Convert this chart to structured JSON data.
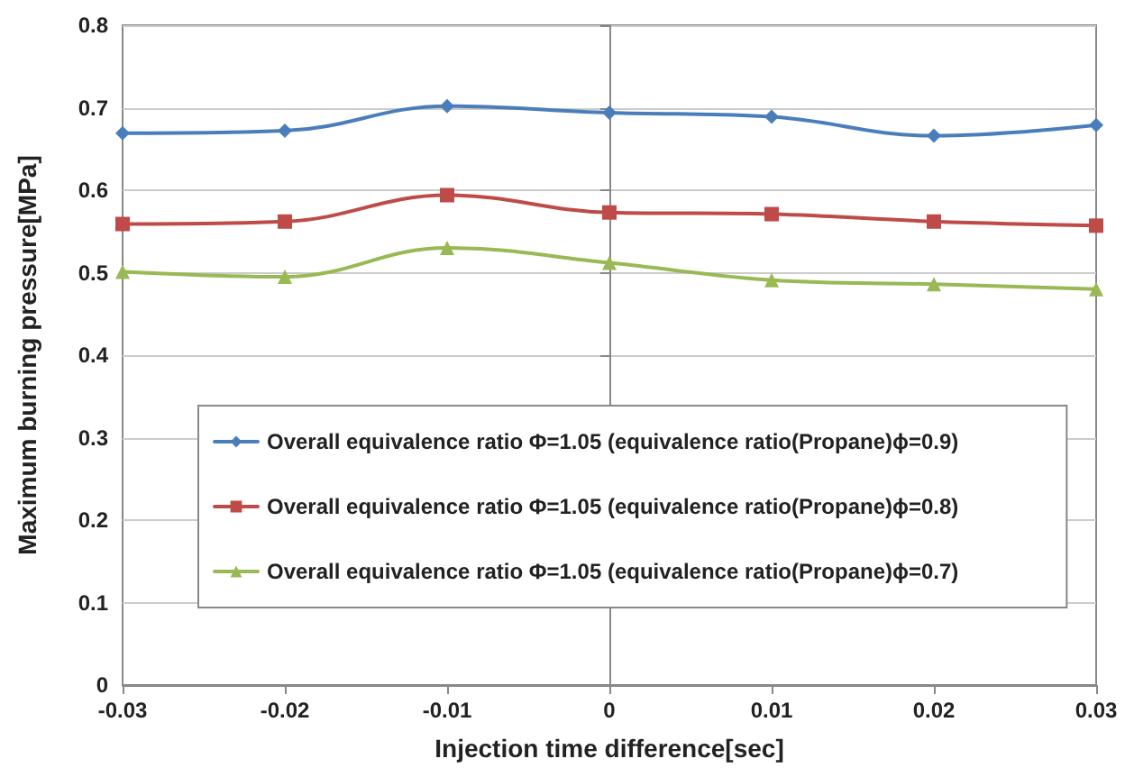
{
  "chart_data": {
    "type": "line",
    "xlabel": "Injection time difference[sec]",
    "ylabel": "Maximum burning pressure[MPa]",
    "x": [
      -0.03,
      -0.02,
      -0.01,
      0,
      0.01,
      0.02,
      0.03
    ],
    "series": [
      {
        "name": "Overall equivalence ratio Φ=1.05 (equivalence ratio(Propane)ϕ=0.9)",
        "color": "#4a7ebb",
        "marker": "diamond",
        "values": [
          0.669,
          0.672,
          0.702,
          0.694,
          0.689,
          0.666,
          0.679
        ]
      },
      {
        "name": "Overall equivalence ratio Φ=1.05 (equivalence ratio(Propane)ϕ=0.8)",
        "color": "#be4b48",
        "marker": "square",
        "values": [
          0.559,
          0.562,
          0.594,
          0.573,
          0.571,
          0.562,
          0.557
        ]
      },
      {
        "name": "Overall equivalence ratio Φ=1.05 (equivalence ratio(Propane)ϕ=0.7)",
        "color": "#98b954",
        "marker": "triangle",
        "values": [
          0.501,
          0.495,
          0.53,
          0.512,
          0.491,
          0.486,
          0.48
        ]
      }
    ],
    "xlim": [
      -0.03,
      0.03
    ],
    "xticks": [
      -0.03,
      -0.02,
      -0.01,
      0,
      0.01,
      0.02,
      0.03
    ],
    "ylim": [
      0,
      0.8
    ],
    "yticks": [
      0,
      0.1,
      0.2,
      0.3,
      0.4,
      0.5,
      0.6,
      0.7,
      0.8
    ],
    "grid": "y",
    "legend": "bottom",
    "line_style": "solid"
  }
}
